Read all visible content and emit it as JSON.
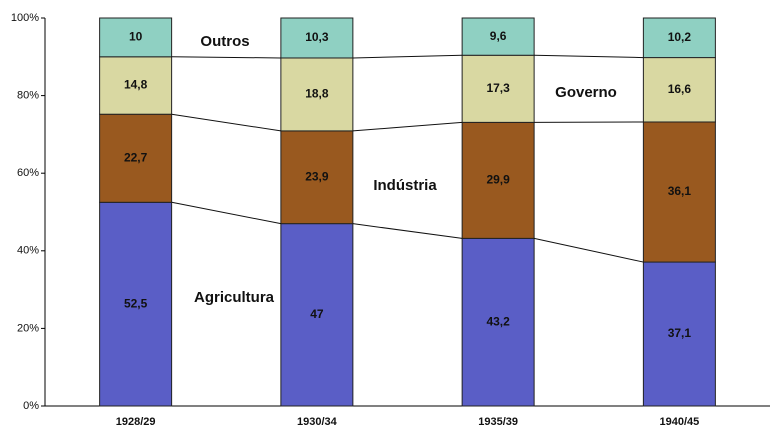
{
  "chart_data": {
    "type": "stacked_bar",
    "categories": [
      "1928/29",
      "1930/34",
      "1935/39",
      "1940/45"
    ],
    "series": [
      {
        "name": "Agricultura",
        "color": "#5a5ec6",
        "values": [
          52.5,
          47,
          43.2,
          37.1
        ],
        "value_labels": [
          "52,5",
          "47",
          "43,2",
          "37,1"
        ]
      },
      {
        "name": "Indústria",
        "color": "#99591f",
        "values": [
          22.7,
          23.9,
          29.9,
          36.1
        ],
        "value_labels": [
          "22,7",
          "23,9",
          "29,9",
          "36,1"
        ]
      },
      {
        "name": "Governo",
        "color": "#d9d8a2",
        "values": [
          14.8,
          18.8,
          17.3,
          16.6
        ],
        "value_labels": [
          "14,8",
          "18,8",
          "17,3",
          "16,6"
        ]
      },
      {
        "name": "Outros",
        "color": "#8fd0c2",
        "values": [
          10,
          10.3,
          9.6,
          10.2
        ],
        "value_labels": [
          "10",
          "10,3",
          "9,6",
          "10,2"
        ]
      }
    ],
    "ylim": [
      0,
      100
    ],
    "yticks": [
      {
        "value": 0,
        "label": "0%"
      },
      {
        "value": 20,
        "label": "20%"
      },
      {
        "value": 40,
        "label": "40%"
      },
      {
        "value": 60,
        "label": "60%"
      },
      {
        "value": 80,
        "label": "80%"
      },
      {
        "value": 100,
        "label": "100%"
      }
    ]
  }
}
